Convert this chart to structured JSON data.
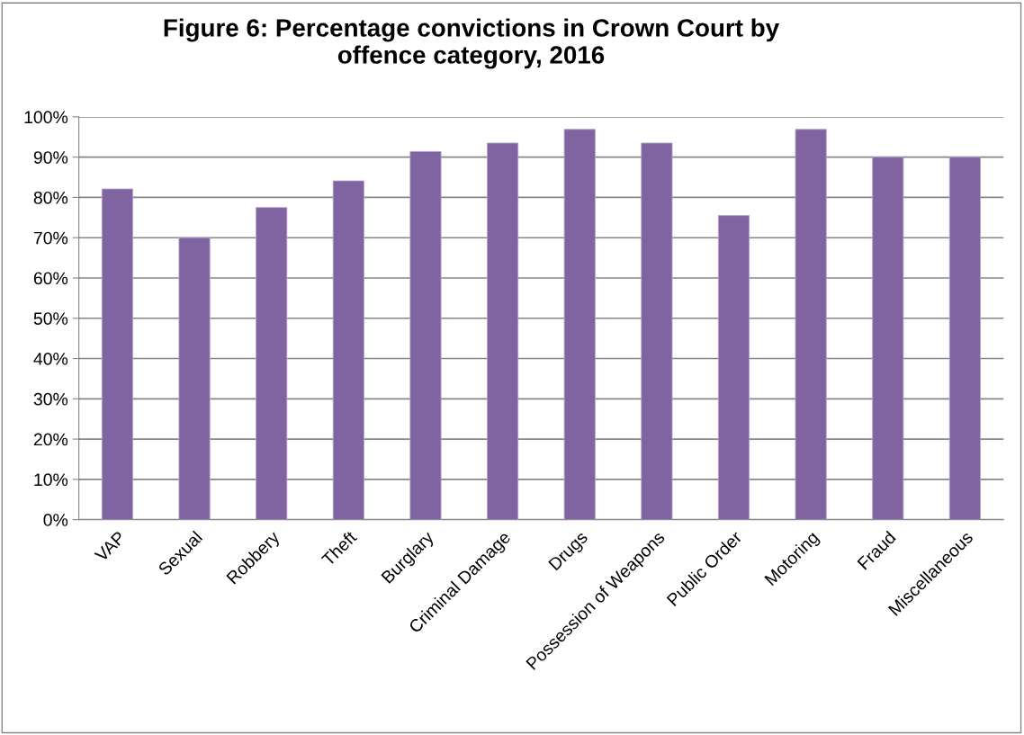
{
  "chart_data": {
    "type": "bar",
    "title": "Figure 6: Percentage convictions in Crown Court by\noffence category, 2016",
    "categories": [
      "VAP",
      "Sexual",
      "Robbery",
      "Theft",
      "Burglary",
      "Criminal Damage",
      "Drugs",
      "Possession of Weapons",
      "Public Order",
      "Motoring",
      "Fraud",
      "Miscellaneous"
    ],
    "values": [
      82.1,
      70.0,
      77.5,
      84.1,
      91.4,
      93.5,
      96.9,
      93.5,
      75.5,
      96.9,
      90.0,
      90.0
    ],
    "color": "#8064a2",
    "ylim": [
      0,
      100
    ],
    "yticks": [
      {
        "value": 0,
        "label": "0%"
      },
      {
        "value": 10,
        "label": "10%"
      },
      {
        "value": 20,
        "label": "20%"
      },
      {
        "value": 30,
        "label": "30%"
      },
      {
        "value": 40,
        "label": "40%"
      },
      {
        "value": 50,
        "label": "50%"
      },
      {
        "value": 60,
        "label": "60%"
      },
      {
        "value": 70,
        "label": "70%"
      },
      {
        "value": 80,
        "label": "80%"
      },
      {
        "value": 90,
        "label": "90%"
      },
      {
        "value": 100,
        "label": "100%"
      }
    ],
    "grid": "y",
    "legend": false
  }
}
